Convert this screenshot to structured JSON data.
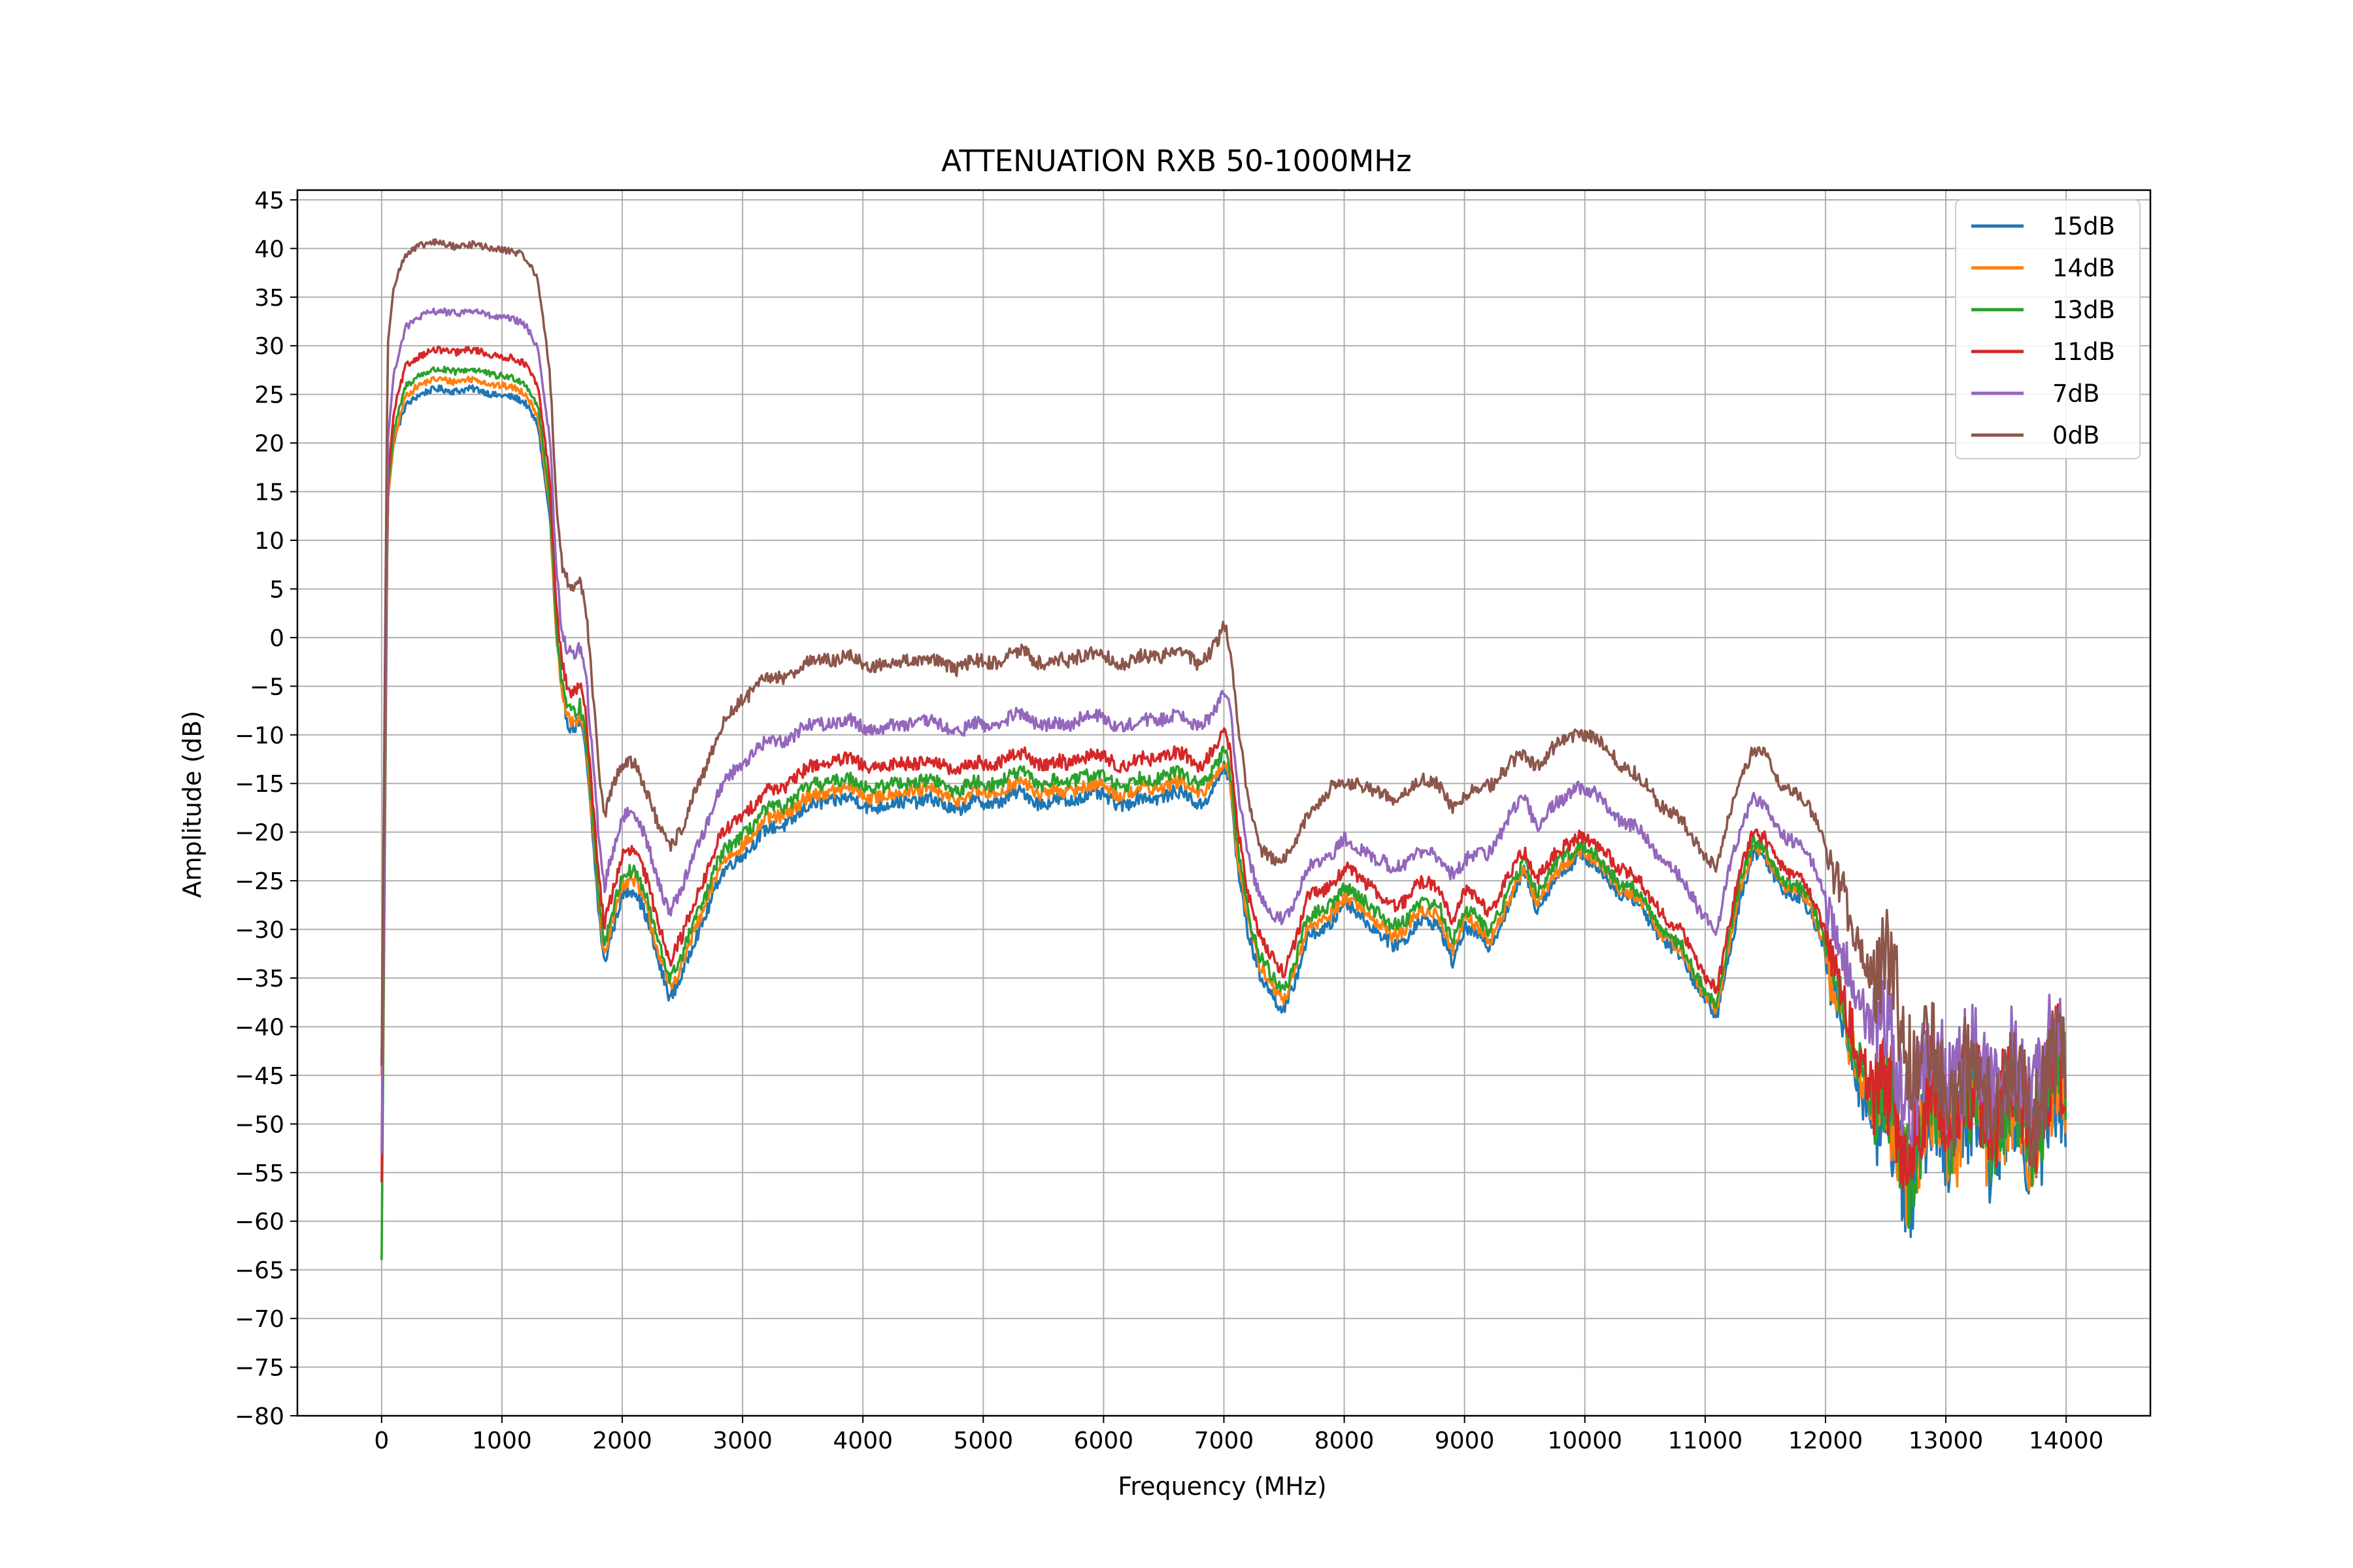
{
  "chart_data": {
    "type": "line",
    "title": "ATTENUATION RXB 50-1000MHz",
    "xlabel": "Frequency (MHz)",
    "ylabel": "Amplitude (dB)",
    "xlim": [
      -700,
      14700
    ],
    "ylim": [
      -80,
      46
    ],
    "x_ticks": [
      0,
      1000,
      2000,
      3000,
      4000,
      5000,
      6000,
      7000,
      8000,
      9000,
      10000,
      11000,
      12000,
      13000,
      14000
    ],
    "x_tick_labels": [
      "0",
      "1000",
      "2000",
      "3000",
      "4000",
      "5000",
      "6000",
      "7000",
      "8000",
      "9000",
      "10000",
      "11000",
      "12000",
      "13000",
      "14000"
    ],
    "y_ticks": [
      45,
      40,
      35,
      30,
      25,
      20,
      15,
      10,
      5,
      0,
      -5,
      -10,
      -15,
      -20,
      -25,
      -30,
      -35,
      -40,
      -45,
      -50,
      -55,
      -60,
      -65,
      -70,
      -75,
      -80
    ],
    "y_tick_labels": [
      "45",
      "40",
      "35",
      "30",
      "25",
      "20",
      "15",
      "10",
      "5",
      "0",
      "−5",
      "−10",
      "−15",
      "−20",
      "−25",
      "−30",
      "−35",
      "−40",
      "−45",
      "−50",
      "−55",
      "−60",
      "−65",
      "−70",
      "−75",
      "−80"
    ],
    "grid": true,
    "legend_position": "top-right",
    "x": [
      0,
      50,
      100,
      200,
      300,
      500,
      700,
      1000,
      1200,
      1300,
      1400,
      1450,
      1500,
      1550,
      1600,
      1650,
      1700,
      1750,
      1800,
      1850,
      1900,
      2000,
      2100,
      2200,
      2300,
      2400,
      2500,
      2600,
      2800,
      3000,
      3200,
      3500,
      3700,
      4000,
      4200,
      4400,
      4600,
      4800,
      5000,
      5200,
      5350,
      5500,
      5700,
      5800,
      6000,
      6200,
      6400,
      6500,
      6600,
      6800,
      6950,
      7000,
      7050,
      7100,
      7200,
      7300,
      7400,
      7500,
      7600,
      7700,
      7900,
      8000,
      8200,
      8400,
      8500,
      8600,
      8800,
      8900,
      9000,
      9200,
      9400,
      9500,
      9600,
      9800,
      9950,
      10200,
      10400,
      10600,
      10800,
      11000,
      11100,
      11200,
      11300,
      11400,
      11500,
      11600,
      11800,
      11900,
      12000,
      12100,
      12200,
      12400,
      12500,
      12600,
      12700,
      12800,
      13000,
      13200,
      13400,
      13600,
      13800,
      14000
    ],
    "series": [
      {
        "name": "15dB",
        "color": "#1f77b4",
        "values": [
          -44,
          14,
          20,
          24,
          25,
          25.5,
          25.5,
          25,
          24,
          22,
          12,
          0,
          -6,
          -9,
          -9,
          -8,
          -12,
          -20,
          -28,
          -34,
          -31,
          -26,
          -26,
          -29,
          -33,
          -37,
          -35,
          -31,
          -25,
          -22,
          -20,
          -18,
          -16.5,
          -17,
          -17.5,
          -16.5,
          -17,
          -17.5,
          -17,
          -16.5,
          -16,
          -17,
          -17,
          -16,
          -16.5,
          -17,
          -16.5,
          -16,
          -16,
          -17,
          -15,
          -13.5,
          -15,
          -22,
          -30,
          -35,
          -37,
          -38,
          -35,
          -31,
          -29,
          -27.5,
          -29,
          -32,
          -31,
          -29,
          -30,
          -33,
          -30,
          -31.5,
          -27,
          -24,
          -27.5,
          -24.5,
          -22,
          -25,
          -27,
          -30,
          -33,
          -37,
          -39,
          -33,
          -26,
          -22,
          -23,
          -25,
          -27,
          -29,
          -32,
          -38,
          -44,
          -48,
          -52,
          -53,
          -55,
          -52,
          -50,
          -51,
          -50,
          -51,
          -50,
          -48
        ]
      },
      {
        "name": "14dB",
        "color": "#ff7f0e",
        "values": [
          -45,
          14,
          20,
          25,
          26,
          26.5,
          26.5,
          26,
          25,
          23,
          13,
          0,
          -6,
          -8.5,
          -8.5,
          -7.5,
          -11,
          -19,
          -27,
          -33,
          -30,
          -25,
          -25,
          -28,
          -32,
          -36,
          -34,
          -30,
          -24,
          -21,
          -19,
          -17,
          -15.5,
          -16,
          -16.5,
          -15.5,
          -16,
          -16.5,
          -16,
          -15.5,
          -15,
          -16,
          -16,
          -15,
          -15.5,
          -16,
          -15.5,
          -15,
          -15,
          -16,
          -14,
          -13,
          -14.5,
          -21,
          -29,
          -34,
          -36,
          -37,
          -34,
          -30,
          -28,
          -27,
          -28,
          -31,
          -30,
          -28,
          -29,
          -32,
          -29,
          -31,
          -26.5,
          -23.5,
          -27,
          -24,
          -21.5,
          -24.5,
          -26.5,
          -29.5,
          -32.5,
          -36.5,
          -38.5,
          -32,
          -25,
          -21.5,
          -22.5,
          -24.5,
          -26.5,
          -28.5,
          -31.5,
          -37,
          -43,
          -47,
          -51,
          -52,
          -54,
          -51,
          -49,
          -50,
          -49,
          -50,
          -49,
          -47
        ]
      },
      {
        "name": "13dB",
        "color": "#2ca02c",
        "values": [
          -64,
          15,
          21,
          26,
          27,
          27.5,
          27.5,
          27,
          26,
          24,
          14,
          1,
          -5,
          -7.5,
          -7.5,
          -6.5,
          -10,
          -18,
          -26,
          -32,
          -29,
          -24,
          -24,
          -27,
          -31,
          -35,
          -33,
          -29,
          -23,
          -20,
          -18,
          -16,
          -14.5,
          -15,
          -15.5,
          -14.5,
          -15,
          -15.5,
          -15,
          -14.5,
          -14,
          -15,
          -15,
          -14,
          -14.5,
          -15,
          -14.5,
          -14,
          -14,
          -15,
          -13,
          -12,
          -13.5,
          -20,
          -28,
          -33,
          -35,
          -36,
          -33,
          -29,
          -27,
          -26,
          -27,
          -30,
          -29,
          -27,
          -28,
          -31,
          -28,
          -30,
          -25.5,
          -23,
          -26,
          -23,
          -21,
          -24,
          -26,
          -29,
          -32,
          -36,
          -38,
          -31,
          -24,
          -21,
          -22,
          -24,
          -26,
          -28,
          -31,
          -36,
          -42,
          -46,
          -50,
          -51,
          -53,
          -50,
          -48,
          -49,
          -48,
          -49,
          -48,
          -46
        ]
      },
      {
        "name": "11dB",
        "color": "#d62728",
        "values": [
          -56,
          16,
          23,
          28,
          29,
          29.5,
          29.5,
          29,
          28,
          26,
          16,
          3,
          -3,
          -5.5,
          -5.5,
          -4.5,
          -8,
          -16,
          -24,
          -30,
          -27,
          -22,
          -22,
          -25,
          -29,
          -33,
          -31,
          -27,
          -21,
          -18,
          -16,
          -14,
          -12.5,
          -13,
          -13.5,
          -12.5,
          -13,
          -13.5,
          -13,
          -12.5,
          -12,
          -13,
          -13,
          -12,
          -12.5,
          -13,
          -12.5,
          -12,
          -12,
          -13,
          -11,
          -10,
          -11.5,
          -18,
          -26,
          -31,
          -33,
          -34,
          -31,
          -27,
          -25,
          -24,
          -25,
          -28,
          -27,
          -25,
          -26,
          -29,
          -26,
          -28,
          -24,
          -22,
          -24.5,
          -22,
          -20,
          -22.5,
          -24.5,
          -27.5,
          -30.5,
          -34.5,
          -36.5,
          -29.5,
          -23,
          -20,
          -21,
          -23,
          -25,
          -27,
          -30,
          -35,
          -41,
          -45,
          -49,
          -50,
          -52,
          -49,
          -47,
          -48,
          -47,
          -48,
          -47,
          -45
        ]
      },
      {
        "name": "7dB",
        "color": "#9467bd",
        "values": [
          -53,
          20,
          27,
          32,
          33,
          33.5,
          33.5,
          33,
          32,
          30,
          20,
          7,
          0,
          -1.5,
          -1.5,
          -0.5,
          -4,
          -12,
          -20,
          -26,
          -23,
          -18,
          -18,
          -21,
          -25,
          -28,
          -26,
          -22,
          -16,
          -12.5,
          -11,
          -9.5,
          -8.5,
          -9,
          -9.5,
          -8.5,
          -9,
          -9.5,
          -9,
          -8.5,
          -8,
          -9,
          -9,
          -8,
          -8.5,
          -9,
          -8.5,
          -8,
          -8,
          -9,
          -7,
          -5.5,
          -7,
          -14,
          -22,
          -27,
          -29,
          -28.5,
          -27,
          -24,
          -22,
          -21,
          -22,
          -24,
          -23,
          -22,
          -23,
          -24,
          -23,
          -22,
          -18,
          -16.5,
          -19,
          -17,
          -15,
          -17.5,
          -19.5,
          -22,
          -25,
          -28.5,
          -30.5,
          -24,
          -19,
          -16.5,
          -17.5,
          -19.5,
          -21.5,
          -23.5,
          -26.5,
          -31,
          -36,
          -39,
          -42,
          -45,
          -47,
          -45,
          -44,
          -45,
          -44,
          -46,
          -44,
          -43
        ]
      },
      {
        "name": "0dB",
        "color": "#8c564b",
        "values": [
          -44,
          30,
          36,
          39.5,
          40.3,
          40.5,
          40.3,
          40,
          39,
          37,
          27,
          14,
          7,
          5.5,
          5.5,
          6.5,
          3,
          -5,
          -13,
          -19,
          -16,
          -12.5,
          -13,
          -16,
          -19,
          -21.5,
          -20,
          -16,
          -10,
          -6,
          -4.5,
          -3,
          -2,
          -2.5,
          -3,
          -2,
          -2.5,
          -3,
          -2.5,
          -2,
          -1.5,
          -2.5,
          -2.5,
          -1.5,
          -2,
          -2.5,
          -2,
          -1.5,
          -1.5,
          -2.5,
          -0.5,
          1,
          -1,
          -7,
          -16,
          -22,
          -23,
          -22.5,
          -21,
          -18.5,
          -15,
          -15.5,
          -15,
          -17,
          -16,
          -14.5,
          -15.5,
          -17,
          -16.5,
          -15,
          -13,
          -12,
          -13,
          -11,
          -9.5,
          -11.5,
          -14,
          -16.5,
          -19,
          -22,
          -24,
          -18.5,
          -14,
          -11.5,
          -12.5,
          -14.5,
          -16.5,
          -18.5,
          -20.5,
          -25,
          -30,
          -33,
          -35,
          -38,
          -41,
          -44,
          -45,
          -46,
          -46,
          -47,
          -46,
          -45
        ]
      }
    ]
  }
}
